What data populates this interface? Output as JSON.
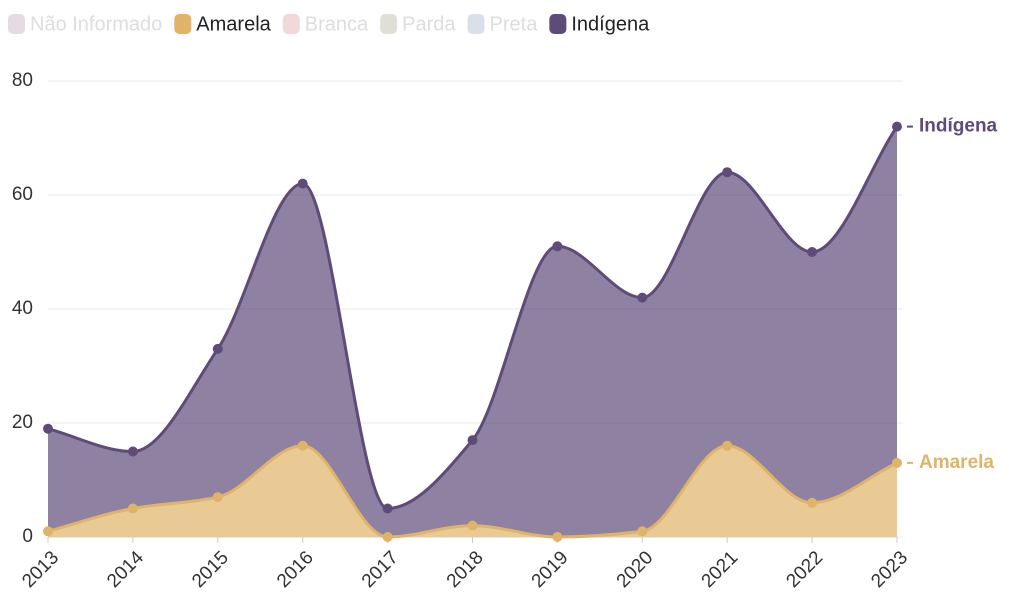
{
  "chart_data": {
    "type": "area",
    "categories": [
      "2013",
      "2014",
      "2015",
      "2016",
      "2017",
      "2018",
      "2019",
      "2020",
      "2021",
      "2022",
      "2023"
    ],
    "series": [
      {
        "name": "Não Informado",
        "color": "#e7dbe3",
        "visible": false
      },
      {
        "name": "Amarela",
        "color": "#e0b468",
        "visible": true,
        "values": [
          1,
          5,
          7,
          16,
          0,
          2,
          0,
          1,
          16,
          6,
          13
        ]
      },
      {
        "name": "Branca",
        "color": "#f1d9d9",
        "visible": false
      },
      {
        "name": "Parda",
        "color": "#dfdfd6",
        "visible": false
      },
      {
        "name": "Preta",
        "color": "#d9e0e7",
        "visible": false
      },
      {
        "name": "Indígena",
        "color": "#5e4b7a",
        "visible": true,
        "values": [
          19,
          15,
          33,
          62,
          5,
          17,
          51,
          42,
          64,
          50,
          72
        ]
      }
    ],
    "ylim": [
      0,
      80
    ],
    "yticks": [
      0,
      20,
      40,
      60,
      80
    ],
    "grid": true
  }
}
